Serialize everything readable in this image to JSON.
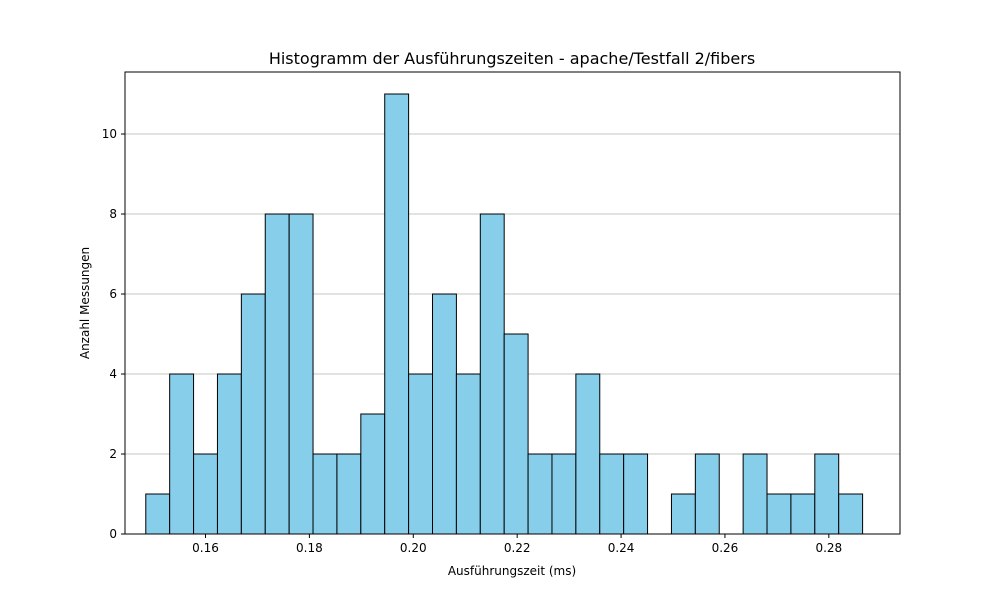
{
  "chart_data": {
    "type": "bar",
    "title": "Histogramm der Ausführungszeiten - apache/Testfall 2/fibers",
    "xlabel": "Ausführungszeit (ms)",
    "ylabel": "Anzahl Messungen",
    "xlim": [
      0.1445,
      0.2937
    ],
    "ylim": [
      0,
      11.55
    ],
    "xticks": [
      0.16,
      0.18,
      0.2,
      0.22,
      0.24,
      0.26,
      0.28
    ],
    "xtick_labels": [
      "0.16",
      "0.18",
      "0.20",
      "0.22",
      "0.24",
      "0.26",
      "0.28"
    ],
    "yticks": [
      0,
      2,
      4,
      6,
      8,
      10
    ],
    "ytick_labels": [
      "0",
      "2",
      "4",
      "6",
      "8",
      "10"
    ],
    "grid": "y",
    "bin_start": 0.1485,
    "bin_width": 0.0046,
    "values": [
      1,
      4,
      2,
      4,
      6,
      8,
      8,
      2,
      2,
      3,
      11,
      4,
      6,
      4,
      8,
      5,
      2,
      2,
      4,
      2,
      2,
      0,
      1,
      2,
      0,
      2,
      1,
      1,
      2,
      1
    ],
    "bar_color": "#87ceeb",
    "edge_color": "#000000"
  }
}
